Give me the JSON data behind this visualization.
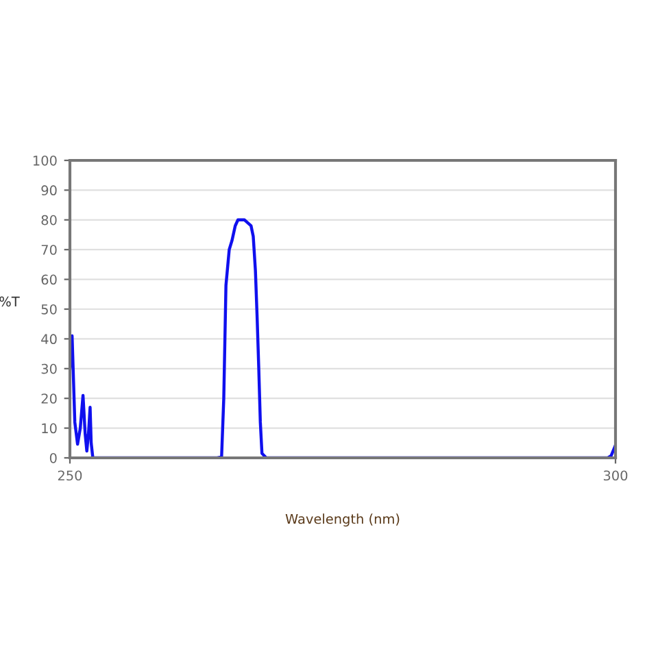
{
  "chart_data": {
    "type": "line",
    "xlabel": "Wavelength (nm)",
    "ylabel": "%T",
    "xlim": [
      250,
      300
    ],
    "xticks": [
      250,
      300
    ],
    "ylim": [
      0,
      100
    ],
    "yticks": [
      0,
      10,
      20,
      30,
      40,
      50,
      60,
      70,
      80,
      90,
      100
    ],
    "grid": "y",
    "series": [
      {
        "color": "#1010ee",
        "x": [
          250.0,
          250.2,
          250.45,
          250.7,
          250.95,
          251.2,
          251.4,
          251.55,
          251.7,
          251.85,
          251.95,
          252.1,
          255,
          260,
          263.5,
          263.9,
          264.1,
          264.3,
          264.6,
          264.85,
          265.15,
          265.4,
          265.7,
          266.0,
          266.3,
          266.6,
          266.8,
          267.0,
          267.15,
          267.3,
          267.45,
          267.6,
          268.0,
          275,
          285,
          295,
          299.3,
          299.6,
          299.95
        ],
        "values": [
          30,
          41,
          12,
          4.6,
          10,
          21,
          8,
          2.3,
          8,
          17,
          5,
          0,
          0,
          0,
          0,
          0.3,
          20,
          58,
          70,
          73,
          78,
          80,
          80,
          80,
          79,
          78,
          74.5,
          63,
          48,
          31,
          12,
          1.5,
          0,
          0,
          0,
          0,
          0,
          0.7,
          3.8
        ]
      }
    ]
  }
}
